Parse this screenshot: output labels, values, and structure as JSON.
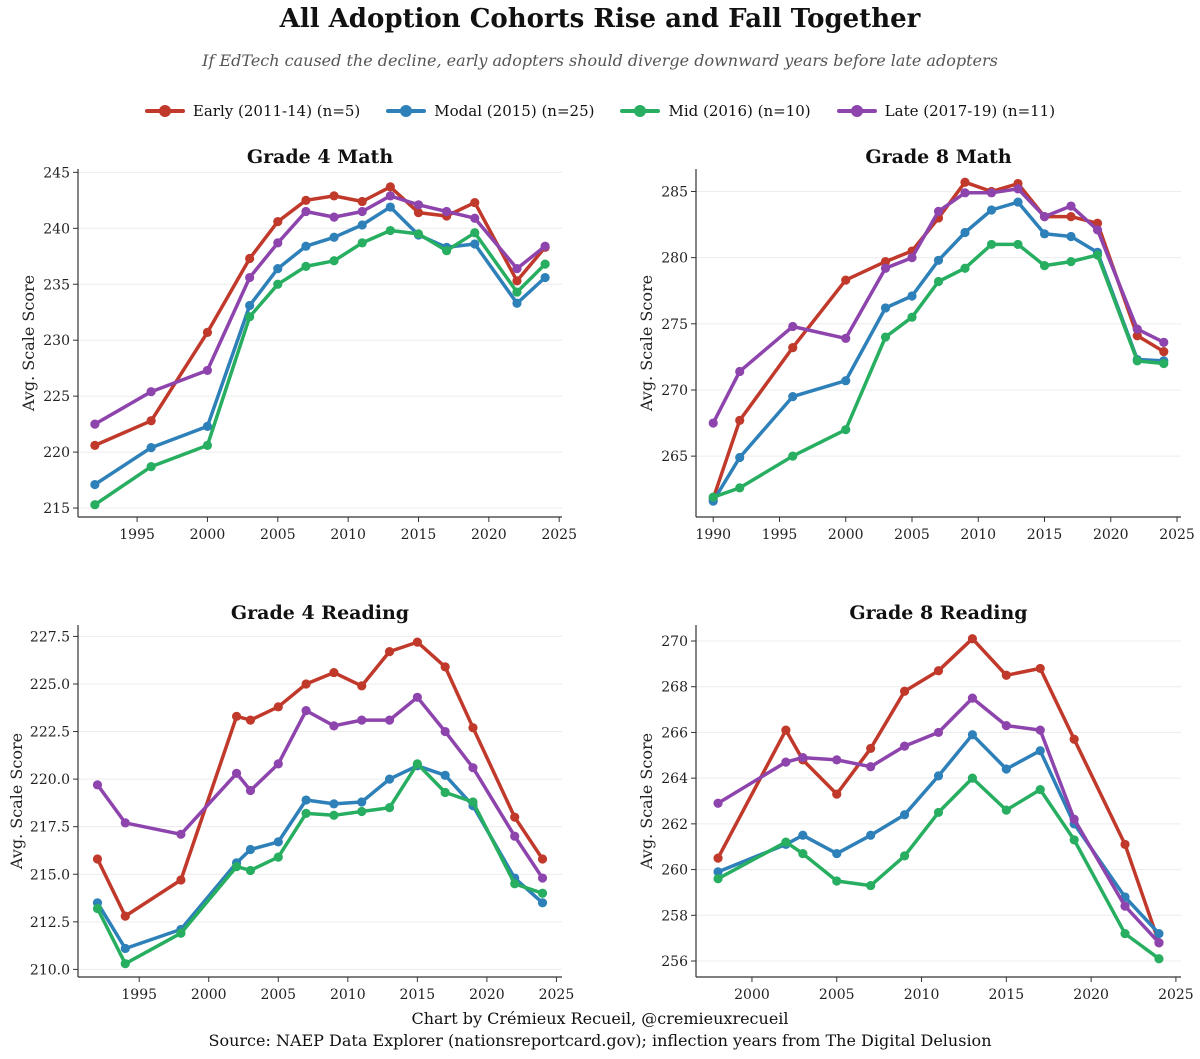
{
  "title": "All Adoption Cohorts Rise and Fall Together",
  "subtitle": "If EdTech caused the decline, early adopters should diverge downward years before late adopters",
  "legend": [
    {
      "label": "Early (2011-14) (n=5)",
      "color": "#c0392b"
    },
    {
      "label": "Modal (2015) (n=25)",
      "color": "#2e80b9"
    },
    {
      "label": "Mid (2016) (n=10)",
      "color": "#27ae60"
    },
    {
      "label": "Late (2017-19) (n=11)",
      "color": "#8e44ad"
    }
  ],
  "credit_line1": "Chart by Crémieux Recueil, @cremieuxrecueil",
  "credit_line2": "Source: NAEP Data Explorer (nationsreportcard.gov); inflection years from The Digital Delusion",
  "chart_data": [
    {
      "type": "line",
      "title": "Grade 4 Math",
      "xlabel": "",
      "ylabel": "Avg. Scale Score",
      "xlim": [
        1990.8,
        2025.2
      ],
      "ylim": [
        214.2,
        245.3
      ],
      "xticks": [
        1995,
        2000,
        2005,
        2010,
        2015,
        2020,
        2025
      ],
      "yticks": [
        215,
        220,
        225,
        230,
        235,
        240,
        245
      ],
      "ytick_labels": [
        "215",
        "220",
        "225",
        "230",
        "235",
        "240",
        "245"
      ],
      "series": [
        {
          "name": "Early (2011-14) (n=5)",
          "color": "#c0392b",
          "x": [
            1992,
            1996,
            2000,
            2003,
            2005,
            2007,
            2009,
            2011,
            2013,
            2015,
            2017,
            2019,
            2022,
            2024
          ],
          "values": [
            220.6,
            222.8,
            230.7,
            237.3,
            240.6,
            242.5,
            242.9,
            242.4,
            243.7,
            241.4,
            241.1,
            242.3,
            235.3,
            238.3
          ]
        },
        {
          "name": "Modal (2015) (n=25)",
          "color": "#2e80b9",
          "x": [
            1992,
            1996,
            2000,
            2003,
            2005,
            2007,
            2009,
            2011,
            2013,
            2015,
            2017,
            2019,
            2022,
            2024
          ],
          "values": [
            217.1,
            220.4,
            222.3,
            233.1,
            236.4,
            238.4,
            239.2,
            240.3,
            241.9,
            239.4,
            238.3,
            238.6,
            233.3,
            235.6
          ]
        },
        {
          "name": "Mid (2016) (n=10)",
          "color": "#27ae60",
          "x": [
            1992,
            1996,
            2000,
            2003,
            2005,
            2007,
            2009,
            2011,
            2013,
            2015,
            2017,
            2019,
            2022,
            2024
          ],
          "values": [
            215.3,
            218.7,
            220.6,
            232.1,
            235.0,
            236.6,
            237.1,
            238.7,
            239.8,
            239.5,
            238.0,
            239.6,
            234.3,
            236.8
          ]
        },
        {
          "name": "Late (2017-19) (n=11)",
          "color": "#8e44ad",
          "x": [
            1992,
            1996,
            2000,
            2003,
            2005,
            2007,
            2009,
            2011,
            2013,
            2015,
            2017,
            2019,
            2022,
            2024
          ],
          "values": [
            222.5,
            225.4,
            227.3,
            235.6,
            238.7,
            241.5,
            241.0,
            241.5,
            242.9,
            242.1,
            241.5,
            240.9,
            236.4,
            238.4
          ]
        }
      ]
    },
    {
      "type": "line",
      "title": "Grade 8 Math",
      "xlabel": "",
      "ylabel": "Avg. Scale Score",
      "xlim": [
        1988.7,
        2025.3
      ],
      "ylim": [
        260.4,
        286.7
      ],
      "xticks": [
        1990,
        1995,
        2000,
        2005,
        2010,
        2015,
        2020,
        2025
      ],
      "yticks": [
        265,
        270,
        275,
        280,
        285
      ],
      "ytick_labels": [
        "265",
        "270",
        "275",
        "280",
        "285"
      ],
      "series": [
        {
          "name": "Early (2011-14) (n=5)",
          "color": "#c0392b",
          "x": [
            1990,
            1992,
            1996,
            2000,
            2003,
            2005,
            2007,
            2009,
            2011,
            2013,
            2015,
            2017,
            2019,
            2022,
            2024
          ],
          "values": [
            261.8,
            267.7,
            273.2,
            278.3,
            279.7,
            280.5,
            283.0,
            285.7,
            285.0,
            285.6,
            283.1,
            283.1,
            282.6,
            274.1,
            272.9
          ]
        },
        {
          "name": "Modal (2015) (n=25)",
          "color": "#2e80b9",
          "x": [
            1990,
            1992,
            1996,
            2000,
            2003,
            2005,
            2007,
            2009,
            2011,
            2013,
            2015,
            2017,
            2019,
            2022,
            2024
          ],
          "values": [
            261.6,
            264.9,
            269.5,
            270.7,
            276.2,
            277.1,
            279.8,
            281.9,
            283.6,
            284.2,
            281.8,
            281.6,
            280.4,
            272.3,
            272.2
          ]
        },
        {
          "name": "Mid (2016) (n=10)",
          "color": "#27ae60",
          "x": [
            1990,
            1992,
            1996,
            2000,
            2003,
            2005,
            2007,
            2009,
            2011,
            2013,
            2015,
            2017,
            2019,
            2022,
            2024
          ],
          "values": [
            261.9,
            262.6,
            265.0,
            267.0,
            274.0,
            275.5,
            278.2,
            279.2,
            281.0,
            281.0,
            279.4,
            279.7,
            280.2,
            272.2,
            272.0
          ]
        },
        {
          "name": "Late (2017-19) (n=11)",
          "color": "#8e44ad",
          "x": [
            1990,
            1992,
            1996,
            2000,
            2003,
            2005,
            2007,
            2009,
            2011,
            2013,
            2015,
            2017,
            2019,
            2022,
            2024
          ],
          "values": [
            267.5,
            271.4,
            274.8,
            273.9,
            279.2,
            280.0,
            283.5,
            284.9,
            284.9,
            285.2,
            283.1,
            283.9,
            282.1,
            274.6,
            273.6
          ]
        }
      ]
    },
    {
      "type": "line",
      "title": "Grade 4 Reading",
      "xlabel": "",
      "ylabel": "Avg. Scale Score",
      "xlim": [
        1990.6,
        2025.4
      ],
      "ylim": [
        209.6,
        228.1
      ],
      "xticks": [
        1995,
        2000,
        2005,
        2010,
        2015,
        2020,
        2025
      ],
      "yticks": [
        210,
        212.5,
        215,
        217.5,
        220,
        222.5,
        225,
        227.5
      ],
      "ytick_labels": [
        "210.0",
        "212.5",
        "215.0",
        "217.5",
        "220.0",
        "222.5",
        "225.0",
        "227.5"
      ],
      "series": [
        {
          "name": "Early (2011-14) (n=5)",
          "color": "#c0392b",
          "x": [
            1992,
            1994,
            1998,
            2002,
            2003,
            2005,
            2007,
            2009,
            2011,
            2013,
            2015,
            2017,
            2019,
            2022,
            2024
          ],
          "values": [
            215.8,
            212.8,
            214.7,
            223.3,
            223.1,
            223.8,
            225.0,
            225.6,
            224.9,
            226.7,
            227.2,
            225.9,
            222.7,
            218.0,
            215.8
          ]
        },
        {
          "name": "Modal (2015) (n=25)",
          "color": "#2e80b9",
          "x": [
            1992,
            1994,
            1998,
            2002,
            2003,
            2005,
            2007,
            2009,
            2011,
            2013,
            2015,
            2017,
            2019,
            2022,
            2024
          ],
          "values": [
            213.5,
            211.1,
            212.1,
            215.6,
            216.3,
            216.7,
            218.9,
            218.7,
            218.8,
            220.0,
            220.7,
            220.2,
            218.6,
            214.8,
            213.5
          ]
        },
        {
          "name": "Mid (2016) (n=10)",
          "color": "#27ae60",
          "x": [
            1992,
            1994,
            1998,
            2002,
            2003,
            2005,
            2007,
            2009,
            2011,
            2013,
            2015,
            2017,
            2019,
            2022,
            2024
          ],
          "values": [
            213.2,
            210.3,
            211.9,
            215.4,
            215.2,
            215.9,
            218.2,
            218.1,
            218.3,
            218.5,
            220.8,
            219.3,
            218.8,
            214.5,
            214.0
          ]
        },
        {
          "name": "Late (2017-19) (n=11)",
          "color": "#8e44ad",
          "x": [
            1992,
            1994,
            1998,
            2002,
            2003,
            2005,
            2007,
            2009,
            2011,
            2013,
            2015,
            2017,
            2019,
            2022,
            2024
          ],
          "values": [
            219.7,
            217.7,
            217.1,
            220.3,
            219.4,
            220.8,
            223.6,
            222.8,
            223.1,
            223.1,
            224.3,
            222.5,
            220.6,
            217.0,
            214.8
          ]
        }
      ]
    },
    {
      "type": "line",
      "title": "Grade 8 Reading",
      "xlabel": "",
      "ylabel": "Avg. Scale Score",
      "xlim": [
        1996.7,
        2025.3
      ],
      "ylim": [
        255.3,
        270.7
      ],
      "xticks": [
        2000,
        2005,
        2010,
        2015,
        2020,
        2025
      ],
      "yticks": [
        256,
        258,
        260,
        262,
        264,
        266,
        268,
        270
      ],
      "ytick_labels": [
        "256",
        "258",
        "260",
        "262",
        "264",
        "266",
        "268",
        "270"
      ],
      "series": [
        {
          "name": "Early (2011-14) (n=5)",
          "color": "#c0392b",
          "x": [
            1998,
            2002,
            2003,
            2005,
            2007,
            2009,
            2011,
            2013,
            2015,
            2017,
            2019,
            2022,
            2024
          ],
          "values": [
            260.5,
            266.1,
            264.8,
            263.3,
            265.3,
            267.8,
            268.7,
            270.1,
            268.5,
            268.8,
            265.7,
            261.1,
            256.8
          ]
        },
        {
          "name": "Modal (2015) (n=25)",
          "color": "#2e80b9",
          "x": [
            1998,
            2002,
            2003,
            2005,
            2007,
            2009,
            2011,
            2013,
            2015,
            2017,
            2019,
            2022,
            2024
          ],
          "values": [
            259.9,
            261.1,
            261.5,
            260.7,
            261.5,
            262.4,
            264.1,
            265.9,
            264.4,
            265.2,
            262.0,
            258.8,
            257.2
          ]
        },
        {
          "name": "Mid (2016) (n=10)",
          "color": "#27ae60",
          "x": [
            1998,
            2002,
            2003,
            2005,
            2007,
            2009,
            2011,
            2013,
            2015,
            2017,
            2019,
            2022,
            2024
          ],
          "values": [
            259.6,
            261.2,
            260.7,
            259.5,
            259.3,
            260.6,
            262.5,
            264.0,
            262.6,
            263.5,
            261.3,
            257.2,
            256.1
          ]
        },
        {
          "name": "Late (2017-19) (n=11)",
          "color": "#8e44ad",
          "x": [
            1998,
            2002,
            2003,
            2005,
            2007,
            2009,
            2011,
            2013,
            2015,
            2017,
            2019,
            2022,
            2024
          ],
          "values": [
            262.9,
            264.7,
            264.9,
            264.8,
            264.5,
            265.4,
            266.0,
            267.5,
            266.3,
            266.1,
            262.2,
            258.4,
            256.8
          ]
        }
      ]
    }
  ]
}
